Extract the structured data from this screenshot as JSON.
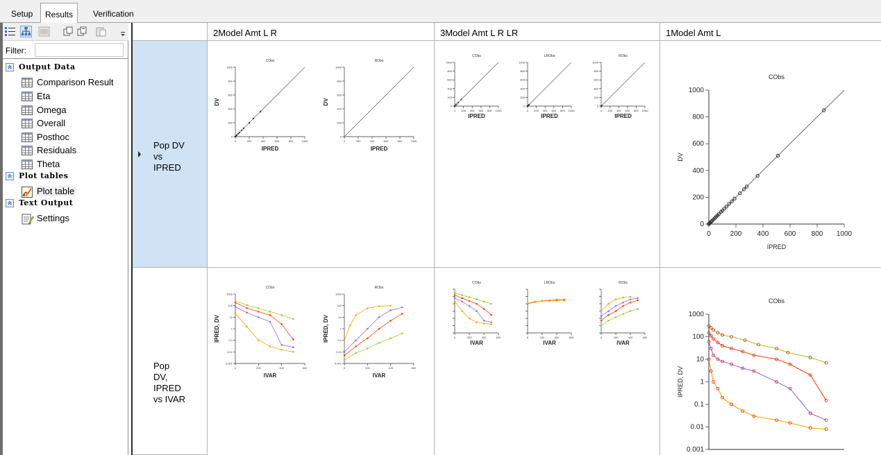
{
  "tabs": [
    {
      "label": "Setup",
      "active": false
    },
    {
      "label": "Results",
      "active": true
    },
    {
      "label": "Verification",
      "active": false
    }
  ],
  "tree": {
    "filter_label": "Filter:",
    "filter_value": "",
    "groups": [
      {
        "label": "Output Data",
        "items": [
          "Comparison Result",
          "Eta",
          "Omega",
          "Overall",
          "Posthoc",
          "Residuals",
          "Theta"
        ]
      },
      {
        "label": "Plot tables",
        "items": [
          "Plot table"
        ]
      },
      {
        "label": "Text Output",
        "items": [
          "Settings"
        ]
      }
    ],
    "selected_item": "Plot table"
  },
  "grid": {
    "columns": [
      "2Model Amt L R",
      "3Model Amt L R LR",
      "1Model Amt L"
    ],
    "rows": [
      {
        "label": "Pop DV\nvs\nIPRED",
        "selected": true
      },
      {
        "label": "Pop\nDV,\nIPRED\nvs IVAR",
        "selected": false
      }
    ]
  },
  "chart_data": [
    {
      "type": "scatter",
      "panel": "2Model Amt L R / Pop DV vs IPRED",
      "title": "CObs",
      "xlabel": "IPRED",
      "ylabel": "DV",
      "xlim": [
        0,
        1000
      ],
      "ylim": [
        0,
        1000
      ],
      "x_ticks": [
        "0",
        "200",
        "400",
        "600",
        "800",
        "1000"
      ],
      "y_ticks": [
        "0",
        "200",
        "400",
        "600",
        "800",
        "1000"
      ],
      "x": [
        0,
        10,
        20,
        40,
        60,
        90,
        120,
        200,
        260,
        360
      ],
      "y": [
        0,
        10,
        20,
        40,
        60,
        90,
        120,
        200,
        260,
        360
      ],
      "identity_line": true
    },
    {
      "type": "scatter",
      "panel": "2Model Amt L R / Pop DV vs IPRED",
      "title": "RObs",
      "xlabel": "IPRED",
      "ylabel": "DV",
      "xlim": [
        0,
        1000
      ],
      "ylim": [
        0,
        1000
      ],
      "x_ticks": [
        "0",
        "200",
        "400",
        "600",
        "800",
        "1000"
      ],
      "y_ticks": [
        "0",
        "200",
        "400",
        "600",
        "800",
        "1000"
      ],
      "x": [],
      "y": [],
      "identity_line": true
    },
    {
      "type": "scatter",
      "panel": "3Model Amt L R LR / Pop DV vs IPRED",
      "title": "CObs",
      "xlabel": "IPRED",
      "ylabel": "",
      "xlim": [
        0,
        1000
      ],
      "ylim": [
        0,
        1000
      ],
      "x_ticks": [
        "0",
        "200",
        "400",
        "600",
        "800",
        "1000"
      ],
      "y_ticks": [
        "0",
        "200",
        "400",
        "600",
        "800",
        "1000"
      ],
      "x": [
        0,
        20,
        40,
        80,
        150
      ],
      "y": [
        0,
        20,
        40,
        80,
        150
      ],
      "identity_line": true
    },
    {
      "type": "scatter",
      "panel": "3Model Amt L R LR / Pop DV vs IPRED",
      "title": "LRObs",
      "xlabel": "IPRED",
      "ylabel": "",
      "xlim": [
        0,
        1000
      ],
      "ylim": [
        0,
        1000
      ],
      "x_ticks": [
        "0",
        "200",
        "400",
        "600",
        "800",
        "1000"
      ],
      "y_ticks": [
        "0",
        "200",
        "400",
        "600",
        "800",
        "1000"
      ],
      "x": [
        0,
        15,
        30
      ],
      "y": [
        0,
        15,
        30
      ],
      "identity_line": true
    },
    {
      "type": "scatter",
      "panel": "3Model Amt L R LR / Pop DV vs IPRED",
      "title": "RObs",
      "xlabel": "IPRED",
      "ylabel": "",
      "xlim": [
        0,
        1000
      ],
      "ylim": [
        0,
        1000
      ],
      "x_ticks": [
        "0",
        "200",
        "400",
        "600",
        "800",
        "1000"
      ],
      "y_ticks": [
        "0",
        "200",
        "400",
        "600",
        "800",
        "1000"
      ],
      "x": [
        0,
        10
      ],
      "y": [
        0,
        10
      ],
      "identity_line": true
    },
    {
      "type": "scatter",
      "panel": "1Model Amt L / Pop DV vs IPRED",
      "title": "CObs",
      "xlabel": "IPRED",
      "ylabel": "DV",
      "xlim": [
        0,
        1000
      ],
      "ylim": [
        0,
        1000
      ],
      "x_ticks": [
        "0",
        "200",
        "400",
        "600",
        "800",
        "1000"
      ],
      "y_ticks": [
        "0",
        "200",
        "400",
        "600",
        "800",
        "1000"
      ],
      "x": [
        0,
        5,
        10,
        18,
        25,
        35,
        45,
        55,
        65,
        75,
        90,
        100,
        115,
        130,
        150,
        170,
        190,
        230,
        260,
        280,
        360,
        510,
        850
      ],
      "y": [
        0,
        5,
        10,
        18,
        25,
        35,
        45,
        55,
        65,
        75,
        90,
        100,
        115,
        130,
        150,
        170,
        190,
        230,
        260,
        280,
        360,
        510,
        850
      ],
      "identity_line": true
    },
    {
      "type": "line",
      "panel": "2Model Amt L R / Pop DV, IPRED vs IVAR",
      "title": "CObs",
      "xlabel": "IVAR",
      "ylabel": "IPRED, DV",
      "y_scale": "log",
      "xlim": [
        0,
        600
      ],
      "ylim": [
        0.001,
        1000
      ],
      "x_ticks": [
        "0",
        "200",
        "400",
        "600"
      ],
      "y_ticks": [
        "0.001",
        "0.01",
        "0.1",
        "1",
        "10",
        "100",
        "1000"
      ],
      "series": [
        {
          "color": "#9acd32",
          "x": [
            0,
            100,
            200,
            300,
            400,
            500
          ],
          "y": [
            250,
            110,
            60,
            30,
            15,
            7
          ]
        },
        {
          "color": "#ff4500",
          "x": [
            0,
            100,
            200,
            300,
            400,
            500
          ],
          "y": [
            180,
            60,
            30,
            15,
            2.5,
            0.12
          ]
        },
        {
          "color": "#9370db",
          "x": [
            0,
            100,
            200,
            300,
            400,
            500
          ],
          "y": [
            80,
            25,
            10,
            4,
            0.04,
            0.025
          ]
        },
        {
          "color": "#ffa500",
          "x": [
            0,
            100,
            200,
            300,
            400,
            500
          ],
          "y": [
            20,
            1.5,
            0.1,
            0.03,
            0.015,
            0.01
          ]
        }
      ]
    },
    {
      "type": "line",
      "panel": "2Model Amt L R / Pop DV, IPRED vs IVAR",
      "title": "RObs",
      "xlabel": "IVAR",
      "ylabel": "IPRED, DV",
      "y_scale": "log",
      "xlim": [
        0,
        600
      ],
      "ylim": [
        0.001,
        1000
      ],
      "x_ticks": [
        "0",
        "200",
        "400",
        "600"
      ],
      "y_ticks": [
        "0.001",
        "0.01",
        "0.1",
        "1",
        "10",
        "100",
        "1000"
      ],
      "series": [
        {
          "color": "#ffa500",
          "x": [
            0,
            50,
            100,
            200,
            300,
            400
          ],
          "y": [
            0.1,
            2,
            15,
            60,
            90,
            100
          ]
        },
        {
          "color": "#9370db",
          "x": [
            0,
            100,
            200,
            300,
            400,
            500
          ],
          "y": [
            0.01,
            0.1,
            1,
            10,
            40,
            70
          ]
        },
        {
          "color": "#ff4500",
          "x": [
            0,
            100,
            200,
            300,
            400,
            500
          ],
          "y": [
            0.005,
            0.03,
            0.15,
            1,
            5,
            20
          ]
        },
        {
          "color": "#9acd32",
          "x": [
            0,
            100,
            200,
            300,
            400,
            500
          ],
          "y": [
            0.002,
            0.008,
            0.02,
            0.06,
            0.15,
            0.4
          ]
        }
      ]
    },
    {
      "type": "line",
      "panel": "3Model Amt L R LR / Pop DV, IPRED vs IVAR",
      "title": "CObs",
      "xlabel": "IVAR",
      "ylabel": "",
      "y_scale": "log",
      "xlim": [
        0,
        600
      ],
      "ylim": [
        0.001,
        1000
      ],
      "x_ticks": [
        "0",
        "200",
        "400",
        "600"
      ],
      "y_ticks": [
        "0.001",
        "0.01",
        "0.1",
        "1",
        "10",
        "100",
        "1000"
      ],
      "series": [
        {
          "color": "#9acd32",
          "x": [
            0,
            100,
            200,
            300,
            400,
            500
          ],
          "y": [
            300,
            150,
            80,
            40,
            20,
            10
          ]
        },
        {
          "color": "#ff4500",
          "x": [
            0,
            100,
            200,
            300,
            400,
            500
          ],
          "y": [
            150,
            60,
            25,
            10,
            2,
            0.3
          ]
        },
        {
          "color": "#9370db",
          "x": [
            0,
            100,
            200,
            300,
            400,
            500
          ],
          "y": [
            60,
            20,
            5,
            1,
            0.05,
            0.03
          ]
        },
        {
          "color": "#ffa500",
          "x": [
            0,
            100,
            200,
            300,
            400,
            500
          ],
          "y": [
            20,
            1,
            0.1,
            0.03,
            0.02,
            0.015
          ]
        }
      ]
    },
    {
      "type": "line",
      "panel": "3Model Amt L R LR / Pop DV, IPRED vs IVAR",
      "title": "LRObs",
      "xlabel": "IVAR",
      "ylabel": "",
      "y_scale": "log",
      "xlim": [
        0,
        600
      ],
      "ylim": [
        0.001,
        1000
      ],
      "x_ticks": [
        "0",
        "200",
        "400",
        "600"
      ],
      "y_ticks": [
        "0.001",
        "0.01",
        "0.1",
        "1",
        "10",
        "100",
        "1000"
      ],
      "series": [
        {
          "color": "#ff4500",
          "x": [
            0,
            100,
            200,
            300,
            400,
            500
          ],
          "y": [
            10,
            18,
            25,
            30,
            35,
            38
          ]
        },
        {
          "color": "#ffa500",
          "x": [
            0,
            100,
            200,
            300,
            400,
            500
          ],
          "y": [
            12,
            20,
            24,
            25,
            26,
            26
          ]
        }
      ]
    },
    {
      "type": "line",
      "panel": "3Model Amt L R LR / Pop DV, IPRED vs IVAR",
      "title": "RObs",
      "xlabel": "IVAR",
      "ylabel": "",
      "y_scale": "log",
      "xlim": [
        0,
        600
      ],
      "ylim": [
        0.001,
        1000
      ],
      "x_ticks": [
        "0",
        "200",
        "400",
        "600"
      ],
      "y_ticks": [
        "0.001",
        "0.01",
        "0.1",
        "1",
        "10",
        "100",
        "1000"
      ],
      "series": [
        {
          "color": "#ffa500",
          "x": [
            0,
            100,
            200,
            300,
            400
          ],
          "y": [
            1,
            10,
            40,
            70,
            90
          ]
        },
        {
          "color": "#9370db",
          "x": [
            0,
            100,
            200,
            300,
            400,
            500
          ],
          "y": [
            0.2,
            1,
            5,
            15,
            40,
            60
          ]
        },
        {
          "color": "#ff4500",
          "x": [
            0,
            100,
            200,
            300,
            400,
            500
          ],
          "y": [
            0.05,
            0.3,
            1,
            5,
            15,
            30
          ]
        },
        {
          "color": "#9acd32",
          "x": [
            0,
            100,
            200,
            300,
            400,
            500
          ],
          "y": [
            0.01,
            0.05,
            0.15,
            0.4,
            1,
            2
          ]
        }
      ]
    },
    {
      "type": "line",
      "panel": "1Model Amt L / Pop DV, IPRED vs IVAR",
      "title": "CObs",
      "xlabel": "",
      "ylabel": "IPRED, DV",
      "y_scale": "log",
      "xlim": [
        0,
        600
      ],
      "ylim": [
        0.001,
        1000
      ],
      "y_ticks": [
        "0.001",
        "0.01",
        "0.1",
        "1",
        "10",
        "100",
        "1000"
      ],
      "series": [
        {
          "color": "#9acd32",
          "x": [
            0,
            10,
            20,
            40,
            60,
            100,
            160,
            220,
            300,
            350,
            450,
            520
          ],
          "y": [
            300,
            250,
            200,
            150,
            120,
            100,
            70,
            45,
            30,
            20,
            12,
            7
          ]
        },
        {
          "color": "#ff4500",
          "x": [
            0,
            10,
            20,
            40,
            60,
            100,
            150,
            200,
            300,
            360,
            450,
            520
          ],
          "y": [
            150,
            110,
            80,
            55,
            40,
            30,
            22,
            15,
            10,
            6,
            2,
            0.15
          ]
        },
        {
          "color": "#9370db",
          "x": [
            0,
            10,
            20,
            40,
            60,
            100,
            150,
            200,
            300,
            360,
            450,
            520
          ],
          "y": [
            60,
            30,
            15,
            10,
            8,
            6,
            4,
            3,
            1,
            0.5,
            0.04,
            0.02
          ]
        },
        {
          "color": "#ffa500",
          "x": [
            0,
            10,
            20,
            40,
            60,
            100,
            150,
            200,
            300,
            360,
            450,
            520
          ],
          "y": [
            10,
            3,
            1,
            0.5,
            0.2,
            0.1,
            0.05,
            0.03,
            0.02,
            0.015,
            0.009,
            0.008
          ]
        }
      ]
    }
  ]
}
